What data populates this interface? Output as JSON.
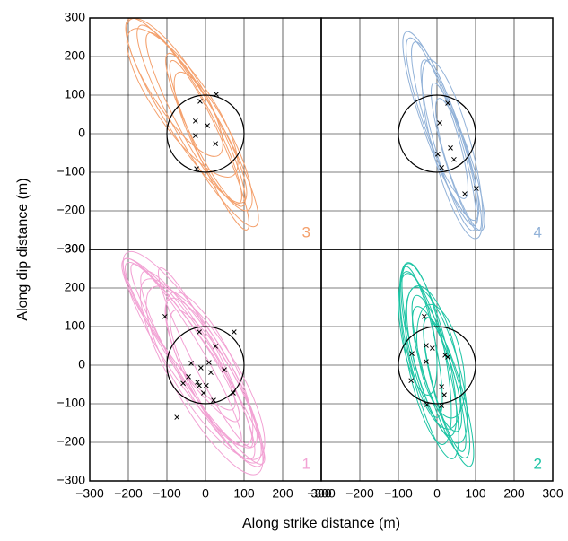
{
  "xlabel": "Along strike distance (m)",
  "ylabel": "Along dip distance (m)",
  "chart_data": [
    {
      "type": "scatter",
      "panel_label": "3",
      "color": "#f4a06c",
      "xtick_labels": false,
      "ytick_labels": true,
      "xlim": [
        -300,
        300
      ],
      "ylim": [
        -300,
        300
      ],
      "xticks": [
        {
          "value": -300,
          "label": "−300"
        },
        {
          "value": -200,
          "label": "−200"
        },
        {
          "value": -100,
          "label": "−100"
        },
        0,
        100,
        200,
        300
      ],
      "yticks": [
        {
          "value": -300,
          "label": "−300"
        },
        {
          "value": -200,
          "label": "−200"
        },
        {
          "value": -100,
          "label": "−100"
        },
        0,
        100,
        200,
        300
      ],
      "circle_radius": 100,
      "x": [
        -14,
        28,
        -26,
        5,
        -26,
        26,
        -23
      ],
      "y": [
        84,
        102,
        33,
        21,
        -5,
        -26,
        -91
      ],
      "ellipses": [
        {
          "cx": -50,
          "cy": 60,
          "rx": 280,
          "ry": 60,
          "angle": -58
        },
        {
          "cx": -30,
          "cy": 40,
          "rx": 250,
          "ry": 45,
          "angle": -62
        },
        {
          "cx": -60,
          "cy": 80,
          "rx": 230,
          "ry": 70,
          "angle": -55
        },
        {
          "cx": 0,
          "cy": 10,
          "rx": 220,
          "ry": 40,
          "angle": -64
        },
        {
          "cx": -20,
          "cy": 20,
          "rx": 300,
          "ry": 55,
          "angle": -60
        },
        {
          "cx": 20,
          "cy": -20,
          "rx": 200,
          "ry": 50,
          "angle": -63
        },
        {
          "cx": -80,
          "cy": 120,
          "rx": 210,
          "ry": 60,
          "angle": -57
        },
        {
          "cx": 10,
          "cy": -30,
          "rx": 240,
          "ry": 35,
          "angle": -66
        }
      ]
    },
    {
      "type": "scatter",
      "panel_label": "4",
      "color": "#92b2d8",
      "xtick_labels": false,
      "ytick_labels": false,
      "xlim": [
        -300,
        300
      ],
      "ylim": [
        -300,
        300
      ],
      "xticks": [
        {
          "value": -300,
          "label": "−300"
        },
        {
          "value": -200,
          "label": "−200"
        },
        {
          "value": -100,
          "label": "−100"
        },
        0,
        100,
        200,
        300
      ],
      "yticks": [
        {
          "value": -300,
          "label": "−300"
        },
        {
          "value": -200,
          "label": "−200"
        },
        {
          "value": -100,
          "label": "−100"
        },
        0,
        100,
        200,
        300
      ],
      "circle_radius": 100,
      "x": [
        28,
        7,
        35,
        2,
        44,
        12,
        72,
        102
      ],
      "y": [
        79,
        28,
        -37,
        -53,
        -67,
        -88,
        -156,
        -142
      ],
      "ellipses": [
        {
          "cx": 20,
          "cy": 0,
          "rx": 250,
          "ry": 40,
          "angle": -72
        },
        {
          "cx": 30,
          "cy": -30,
          "rx": 230,
          "ry": 35,
          "angle": -74
        },
        {
          "cx": 10,
          "cy": 20,
          "rx": 260,
          "ry": 45,
          "angle": -70
        },
        {
          "cx": 50,
          "cy": -60,
          "rx": 200,
          "ry": 30,
          "angle": -73
        },
        {
          "cx": 0,
          "cy": 40,
          "rx": 220,
          "ry": 38,
          "angle": -71
        },
        {
          "cx": 40,
          "cy": -40,
          "rx": 240,
          "ry": 50,
          "angle": -75
        },
        {
          "cx": 60,
          "cy": -80,
          "rx": 180,
          "ry": 32,
          "angle": -72
        }
      ]
    },
    {
      "type": "scatter",
      "panel_label": "1",
      "color": "#f2a2d4",
      "xtick_labels": true,
      "ytick_labels": true,
      "xlim": [
        -300,
        300
      ],
      "ylim": [
        -300,
        300
      ],
      "xticks": [
        {
          "value": -300,
          "label": "−300"
        },
        {
          "value": -200,
          "label": "−200"
        },
        {
          "value": -100,
          "label": "−100"
        },
        0,
        100,
        200,
        300
      ],
      "yticks": [
        {
          "value": -300,
          "label": "−300"
        },
        {
          "value": -200,
          "label": "−200"
        },
        {
          "value": -100,
          "label": "−100"
        },
        0,
        100,
        200,
        300
      ],
      "circle_radius": 100,
      "x": [
        -105,
        -16,
        26,
        74,
        -37,
        9,
        -44,
        -21,
        14,
        49,
        72,
        -58,
        -5,
        21,
        -74,
        -16,
        -12,
        2
      ],
      "y": [
        126,
        86,
        49,
        86,
        5,
        7,
        -30,
        -44,
        -19,
        -12,
        -72,
        -47,
        -72,
        -91,
        -135,
        -53,
        -7,
        -53
      ],
      "ellipses": [
        {
          "cx": -40,
          "cy": 40,
          "rx": 300,
          "ry": 70,
          "angle": -57
        },
        {
          "cx": -20,
          "cy": 0,
          "rx": 280,
          "ry": 55,
          "angle": -60
        },
        {
          "cx": 0,
          "cy": -20,
          "rx": 260,
          "ry": 80,
          "angle": -58
        },
        {
          "cx": -60,
          "cy": 60,
          "rx": 250,
          "ry": 45,
          "angle": -55
        },
        {
          "cx": 20,
          "cy": -40,
          "rx": 240,
          "ry": 60,
          "angle": -62
        },
        {
          "cx": -30,
          "cy": 10,
          "rx": 320,
          "ry": 50,
          "angle": -56
        },
        {
          "cx": 10,
          "cy": -10,
          "rx": 220,
          "ry": 65,
          "angle": -64
        },
        {
          "cx": -50,
          "cy": 30,
          "rx": 270,
          "ry": 40,
          "angle": -59
        },
        {
          "cx": 30,
          "cy": -60,
          "rx": 230,
          "ry": 55,
          "angle": -61
        },
        {
          "cx": -10,
          "cy": -30,
          "rx": 290,
          "ry": 75,
          "angle": -60
        },
        {
          "cx": -70,
          "cy": 80,
          "rx": 240,
          "ry": 50,
          "angle": -54
        },
        {
          "cx": 0,
          "cy": 20,
          "rx": 260,
          "ry": 35,
          "angle": -63
        }
      ]
    },
    {
      "type": "scatter",
      "panel_label": "2",
      "color": "#1cc4a4",
      "xtick_labels": true,
      "ytick_labels": false,
      "xlim": [
        -300,
        300
      ],
      "ylim": [
        -300,
        300
      ],
      "xticks": [
        {
          "value": -300,
          "label": "−300"
        },
        {
          "value": -200,
          "label": "−200"
        },
        {
          "value": -100,
          "label": "−100"
        },
        0,
        100,
        200,
        300
      ],
      "yticks": [
        {
          "value": -300,
          "label": "−300"
        },
        {
          "value": -200,
          "label": "−200"
        },
        {
          "value": -100,
          "label": "−100"
        },
        0,
        100,
        200,
        300
      ],
      "circle_radius": 100,
      "x": [
        -33,
        -28,
        -12,
        -65,
        -28,
        21,
        28,
        -67,
        -26,
        12,
        19,
        12
      ],
      "y": [
        126,
        51,
        44,
        30,
        9,
        26,
        21,
        -40,
        -102,
        -56,
        -77,
        -105
      ],
      "ellipses": [
        {
          "cx": -20,
          "cy": 40,
          "rx": 230,
          "ry": 45,
          "angle": -76
        },
        {
          "cx": 0,
          "cy": 0,
          "rx": 210,
          "ry": 55,
          "angle": -74
        },
        {
          "cx": -40,
          "cy": 60,
          "rx": 200,
          "ry": 35,
          "angle": -78
        },
        {
          "cx": 10,
          "cy": -30,
          "rx": 220,
          "ry": 40,
          "angle": -73
        },
        {
          "cx": -10,
          "cy": 20,
          "rx": 190,
          "ry": 60,
          "angle": -77
        },
        {
          "cx": 20,
          "cy": -50,
          "rx": 180,
          "ry": 30,
          "angle": -75
        },
        {
          "cx": -30,
          "cy": 30,
          "rx": 240,
          "ry": 50,
          "angle": -79
        },
        {
          "cx": 0,
          "cy": -10,
          "rx": 170,
          "ry": 38,
          "angle": -72
        },
        {
          "cx": -50,
          "cy": 80,
          "rx": 160,
          "ry": 42,
          "angle": -80
        },
        {
          "cx": 30,
          "cy": -70,
          "rx": 200,
          "ry": 36,
          "angle": -74
        },
        {
          "cx": -20,
          "cy": 0,
          "rx": 250,
          "ry": 48,
          "angle": -76
        },
        {
          "cx": 10,
          "cy": 10,
          "rx": 150,
          "ry": 55,
          "angle": -78
        }
      ]
    }
  ]
}
